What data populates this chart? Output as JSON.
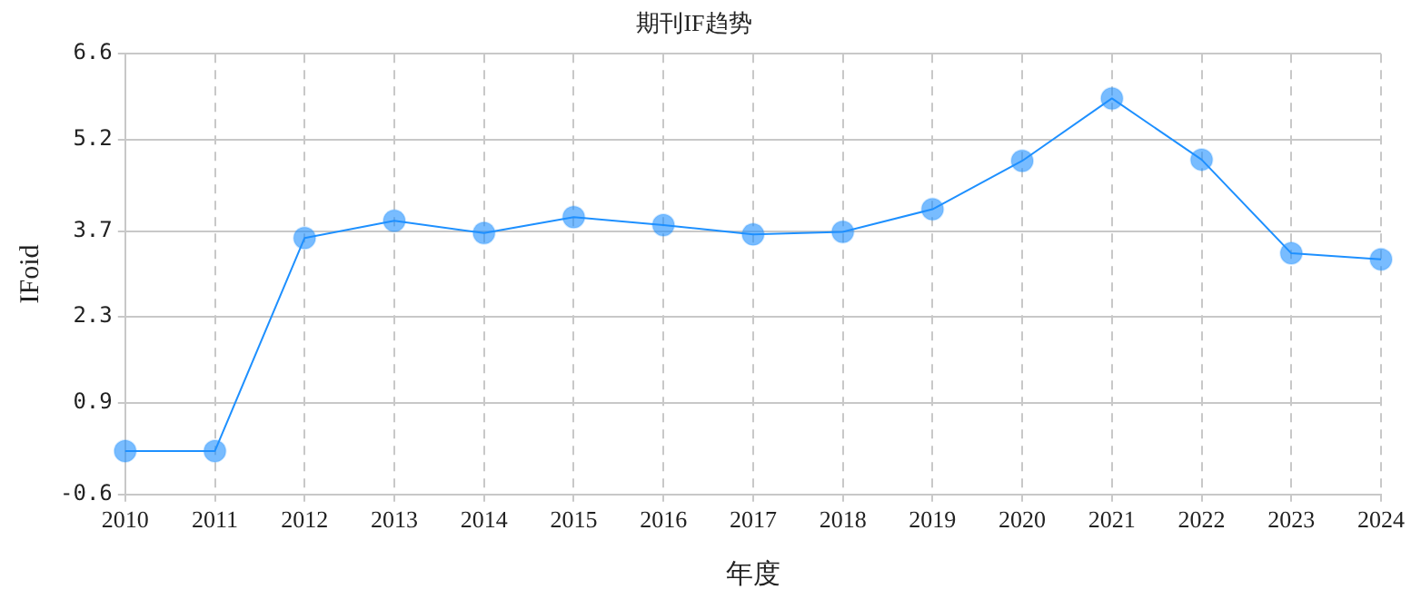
{
  "chart_data": {
    "type": "line",
    "title": "期刊IF趋势",
    "xlabel": "年度",
    "ylabel": "IFoid",
    "categories": [
      "2010",
      "2011",
      "2012",
      "2013",
      "2014",
      "2015",
      "2016",
      "2017",
      "2018",
      "2019",
      "2020",
      "2021",
      "2022",
      "2023",
      "2024"
    ],
    "series": [
      {
        "color": "#1e90ff",
        "values": [
          0.11,
          0.11,
          3.59,
          3.87,
          3.67,
          3.93,
          3.8,
          3.65,
          3.69,
          4.06,
          4.85,
          5.87,
          4.87,
          3.34,
          3.24
        ]
      }
    ],
    "ylim": [
      -0.6,
      6.6
    ],
    "yticks": [
      -0.6,
      0.9,
      2.3,
      3.7,
      5.2,
      6.6
    ],
    "grid": true,
    "marker": "circle",
    "line_style": "solid",
    "legend": false
  }
}
